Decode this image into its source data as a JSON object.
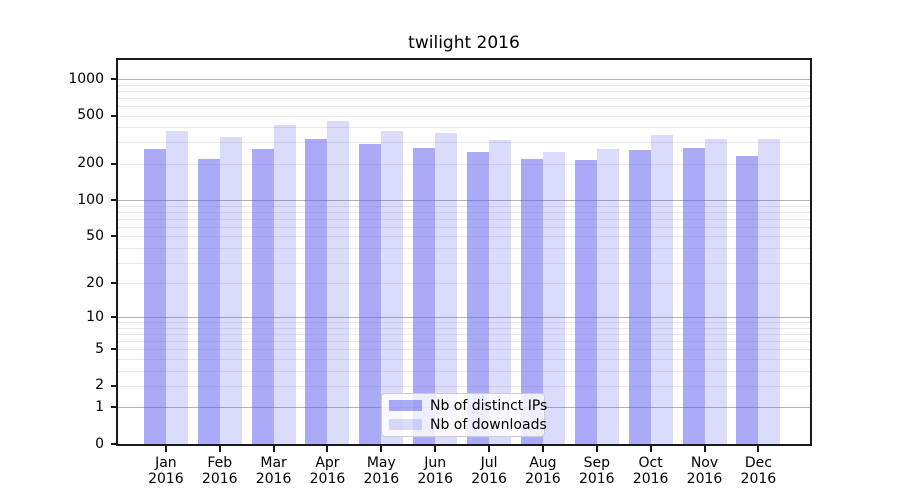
{
  "chart_data": {
    "type": "bar",
    "title": "twilight 2016",
    "categories": [
      "Jan",
      "Feb",
      "Mar",
      "Apr",
      "May",
      "Jun",
      "Jul",
      "Aug",
      "Sep",
      "Oct",
      "Nov",
      "Dec"
    ],
    "year_label": "2016",
    "series": [
      {
        "name": "Nb of distinct IPs",
        "color": "rgba(85,85,238,0.5)",
        "values": [
          265,
          220,
          265,
          319,
          290,
          272,
          252,
          218,
          214,
          261,
          272,
          234
        ]
      },
      {
        "name": "Nb of downloads",
        "color": "rgba(85,85,238,0.21)",
        "values": [
          374,
          334,
          421,
          452,
          376,
          362,
          317,
          251,
          267,
          344,
          319,
          323
        ]
      }
    ],
    "yscale": "log1p",
    "ylim": [
      0,
      1433
    ],
    "yticks": [
      1000,
      500,
      200,
      100,
      50,
      20,
      10,
      5,
      2,
      1,
      0
    ],
    "grid": {
      "major": [
        1,
        10,
        100,
        1000
      ],
      "minor": [
        2,
        3,
        4,
        5,
        6,
        7,
        8,
        9,
        20,
        30,
        40,
        50,
        60,
        70,
        80,
        90,
        200,
        300,
        400,
        500,
        600,
        700,
        800,
        900
      ],
      "major_color": "#b3b3b3",
      "minor_color": "#e9e9e9"
    },
    "legend": {
      "position": "lower center"
    },
    "xlabel": "",
    "ylabel": ""
  }
}
